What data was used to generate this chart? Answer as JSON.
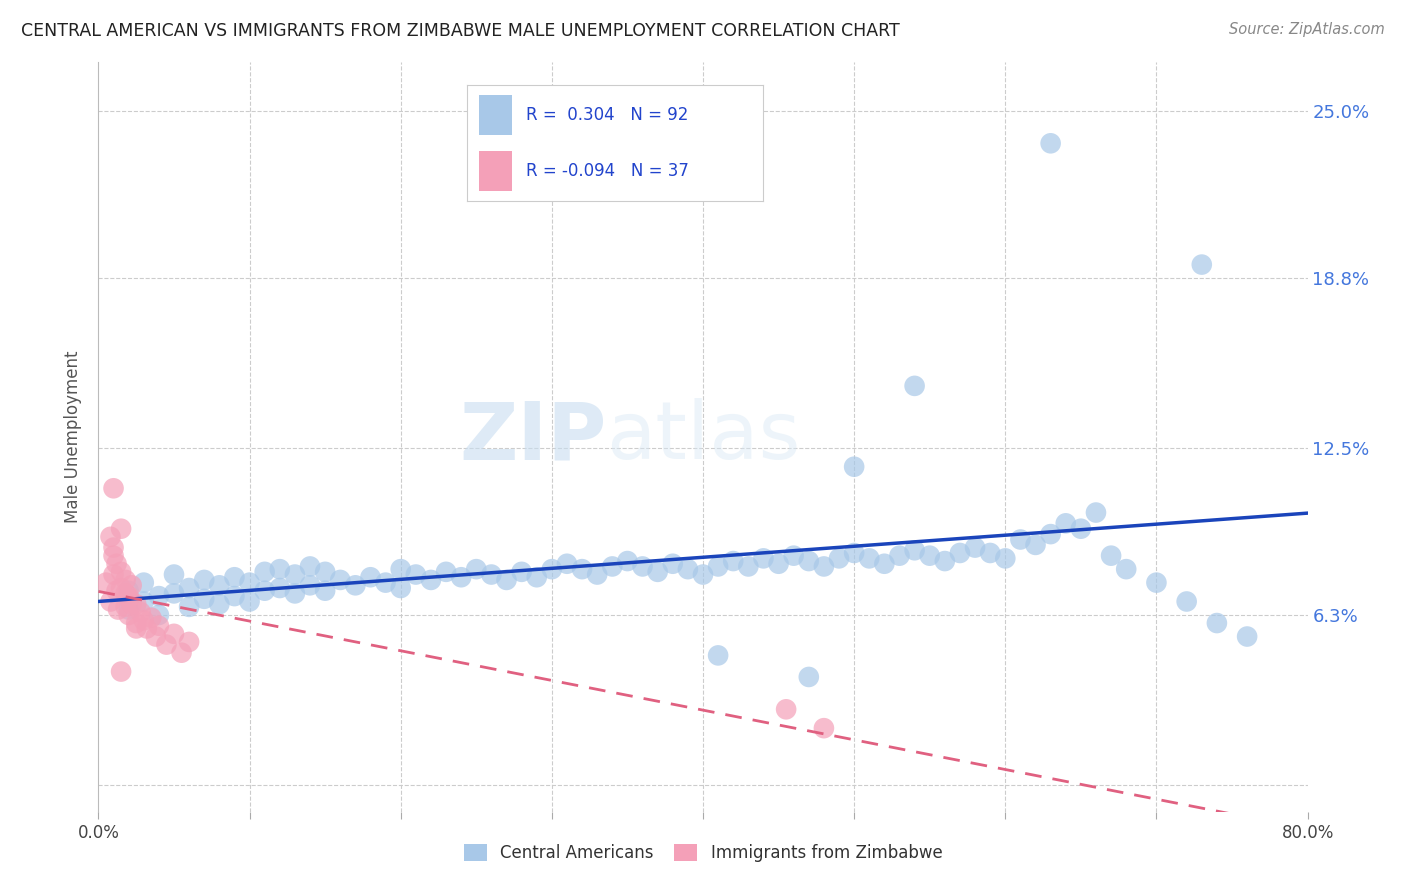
{
  "title": "CENTRAL AMERICAN VS IMMIGRANTS FROM ZIMBABWE MALE UNEMPLOYMENT CORRELATION CHART",
  "source": "Source: ZipAtlas.com",
  "ylabel": "Male Unemployment",
  "legend_label1": "Central Americans",
  "legend_label2": "Immigrants from Zimbabwe",
  "r1": 0.304,
  "n1": 92,
  "r2": -0.094,
  "n2": 37,
  "xmin": 0.0,
  "xmax": 0.8,
  "ymin": -0.01,
  "ymax": 0.268,
  "yticks": [
    0.0,
    0.063,
    0.125,
    0.188,
    0.25
  ],
  "ytick_labels": [
    "",
    "6.3%",
    "12.5%",
    "18.8%",
    "25.0%"
  ],
  "xticks": [
    0.0,
    0.1,
    0.2,
    0.3,
    0.4,
    0.5,
    0.6,
    0.7,
    0.8
  ],
  "xtick_labels": [
    "0.0%",
    "",
    "",
    "",
    "",
    "",
    "",
    "",
    "80.0%"
  ],
  "color_blue": "#a8c8e8",
  "color_pink": "#f4a0b8",
  "line_blue": "#1a44bb",
  "line_pink": "#e06080",
  "background": "#ffffff",
  "watermark_zip": "ZIP",
  "watermark_atlas": "atlas",
  "blue_x": [
    0.02,
    0.02,
    0.03,
    0.03,
    0.04,
    0.04,
    0.05,
    0.05,
    0.06,
    0.06,
    0.07,
    0.07,
    0.08,
    0.08,
    0.09,
    0.09,
    0.1,
    0.1,
    0.11,
    0.11,
    0.12,
    0.12,
    0.13,
    0.13,
    0.14,
    0.14,
    0.15,
    0.15,
    0.16,
    0.17,
    0.18,
    0.19,
    0.2,
    0.2,
    0.21,
    0.22,
    0.23,
    0.24,
    0.25,
    0.26,
    0.27,
    0.28,
    0.29,
    0.3,
    0.31,
    0.32,
    0.33,
    0.34,
    0.35,
    0.36,
    0.37,
    0.38,
    0.39,
    0.4,
    0.41,
    0.42,
    0.43,
    0.44,
    0.45,
    0.46,
    0.47,
    0.48,
    0.49,
    0.5,
    0.51,
    0.52,
    0.53,
    0.54,
    0.55,
    0.56,
    0.57,
    0.58,
    0.59,
    0.6,
    0.61,
    0.62,
    0.63,
    0.64,
    0.65,
    0.66,
    0.67,
    0.68,
    0.7,
    0.72,
    0.74,
    0.76,
    0.63,
    0.73,
    0.54,
    0.5,
    0.41,
    0.47
  ],
  "blue_y": [
    0.065,
    0.072,
    0.068,
    0.075,
    0.063,
    0.07,
    0.071,
    0.078,
    0.066,
    0.073,
    0.069,
    0.076,
    0.067,
    0.074,
    0.07,
    0.077,
    0.068,
    0.075,
    0.072,
    0.079,
    0.073,
    0.08,
    0.071,
    0.078,
    0.074,
    0.081,
    0.072,
    0.079,
    0.076,
    0.074,
    0.077,
    0.075,
    0.073,
    0.08,
    0.078,
    0.076,
    0.079,
    0.077,
    0.08,
    0.078,
    0.076,
    0.079,
    0.077,
    0.08,
    0.082,
    0.08,
    0.078,
    0.081,
    0.083,
    0.081,
    0.079,
    0.082,
    0.08,
    0.078,
    0.081,
    0.083,
    0.081,
    0.084,
    0.082,
    0.085,
    0.083,
    0.081,
    0.084,
    0.086,
    0.084,
    0.082,
    0.085,
    0.087,
    0.085,
    0.083,
    0.086,
    0.088,
    0.086,
    0.084,
    0.091,
    0.089,
    0.093,
    0.097,
    0.095,
    0.101,
    0.085,
    0.08,
    0.075,
    0.068,
    0.06,
    0.055,
    0.238,
    0.193,
    0.148,
    0.118,
    0.048,
    0.04
  ],
  "pink_x": [
    0.005,
    0.008,
    0.01,
    0.01,
    0.012,
    0.013,
    0.015,
    0.015,
    0.018,
    0.018,
    0.02,
    0.02,
    0.022,
    0.022,
    0.025,
    0.025,
    0.028,
    0.03,
    0.032,
    0.035,
    0.038,
    0.04,
    0.045,
    0.05,
    0.055,
    0.06,
    0.008,
    0.01,
    0.012,
    0.015,
    0.018,
    0.02,
    0.025,
    0.455,
    0.01,
    0.015,
    0.48
  ],
  "pink_y": [
    0.075,
    0.068,
    0.085,
    0.078,
    0.072,
    0.065,
    0.079,
    0.073,
    0.066,
    0.071,
    0.063,
    0.07,
    0.067,
    0.074,
    0.06,
    0.067,
    0.064,
    0.061,
    0.058,
    0.062,
    0.055,
    0.059,
    0.052,
    0.056,
    0.049,
    0.053,
    0.092,
    0.088,
    0.082,
    0.095,
    0.076,
    0.069,
    0.058,
    0.028,
    0.11,
    0.042,
    0.021
  ]
}
